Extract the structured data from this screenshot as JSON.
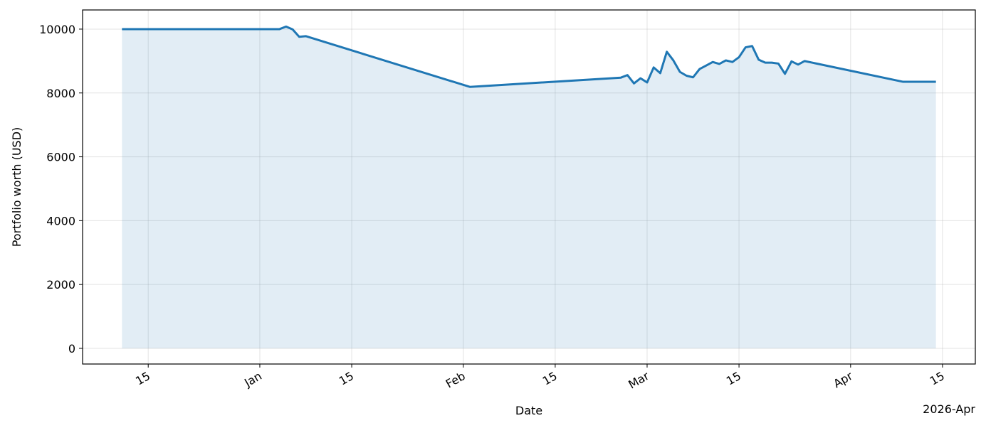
{
  "chart_data": {
    "type": "line",
    "xlabel": "Date",
    "ylabel": "Portfolio worth (USD)",
    "x_offset_label": "2026-Apr",
    "x": [
      "2025-12-11",
      "2026-01-04",
      "2026-01-05",
      "2026-01-06",
      "2026-01-07",
      "2026-01-08",
      "2026-02-02",
      "2026-02-25",
      "2026-02-26",
      "2026-02-27",
      "2026-02-28",
      "2026-03-01",
      "2026-03-02",
      "2026-03-03",
      "2026-03-04",
      "2026-03-05",
      "2026-03-06",
      "2026-03-07",
      "2026-03-08",
      "2026-03-09",
      "2026-03-10",
      "2026-03-11",
      "2026-03-12",
      "2026-03-13",
      "2026-03-14",
      "2026-03-15",
      "2026-03-16",
      "2026-03-17",
      "2026-03-18",
      "2026-03-19",
      "2026-03-20",
      "2026-03-21",
      "2026-03-22",
      "2026-03-23",
      "2026-03-24",
      "2026-03-25",
      "2026-04-09",
      "2026-04-14"
    ],
    "series": [
      {
        "color": "#1f77b4",
        "fill_opacity": 0.13,
        "values": [
          10000,
          10000,
          10080,
          9990,
          9760,
          9780,
          8190,
          8480,
          8560,
          8300,
          8460,
          8330,
          8800,
          8620,
          9290,
          9020,
          8660,
          8540,
          8490,
          8750,
          8860,
          8970,
          8910,
          9020,
          8970,
          9120,
          9430,
          9470,
          9040,
          8950,
          8950,
          8920,
          8600,
          8990,
          8890,
          9000,
          8350,
          8350
        ]
      }
    ],
    "xlim": [
      "2025-12-05",
      "2026-04-20"
    ],
    "xticks": [
      {
        "value": "2025-12-15",
        "label": "15"
      },
      {
        "value": "2026-01-01",
        "label": "Jan"
      },
      {
        "value": "2026-01-15",
        "label": "15"
      },
      {
        "value": "2026-02-01",
        "label": "Feb"
      },
      {
        "value": "2026-02-15",
        "label": "15"
      },
      {
        "value": "2026-03-01",
        "label": "Mar"
      },
      {
        "value": "2026-03-15",
        "label": "15"
      },
      {
        "value": "2026-04-01",
        "label": "Apr"
      },
      {
        "value": "2026-04-15",
        "label": "15"
      }
    ],
    "ylim": [
      -490,
      10600
    ],
    "yticks": [
      0,
      2000,
      4000,
      6000,
      8000,
      10000
    ],
    "grid": true
  }
}
